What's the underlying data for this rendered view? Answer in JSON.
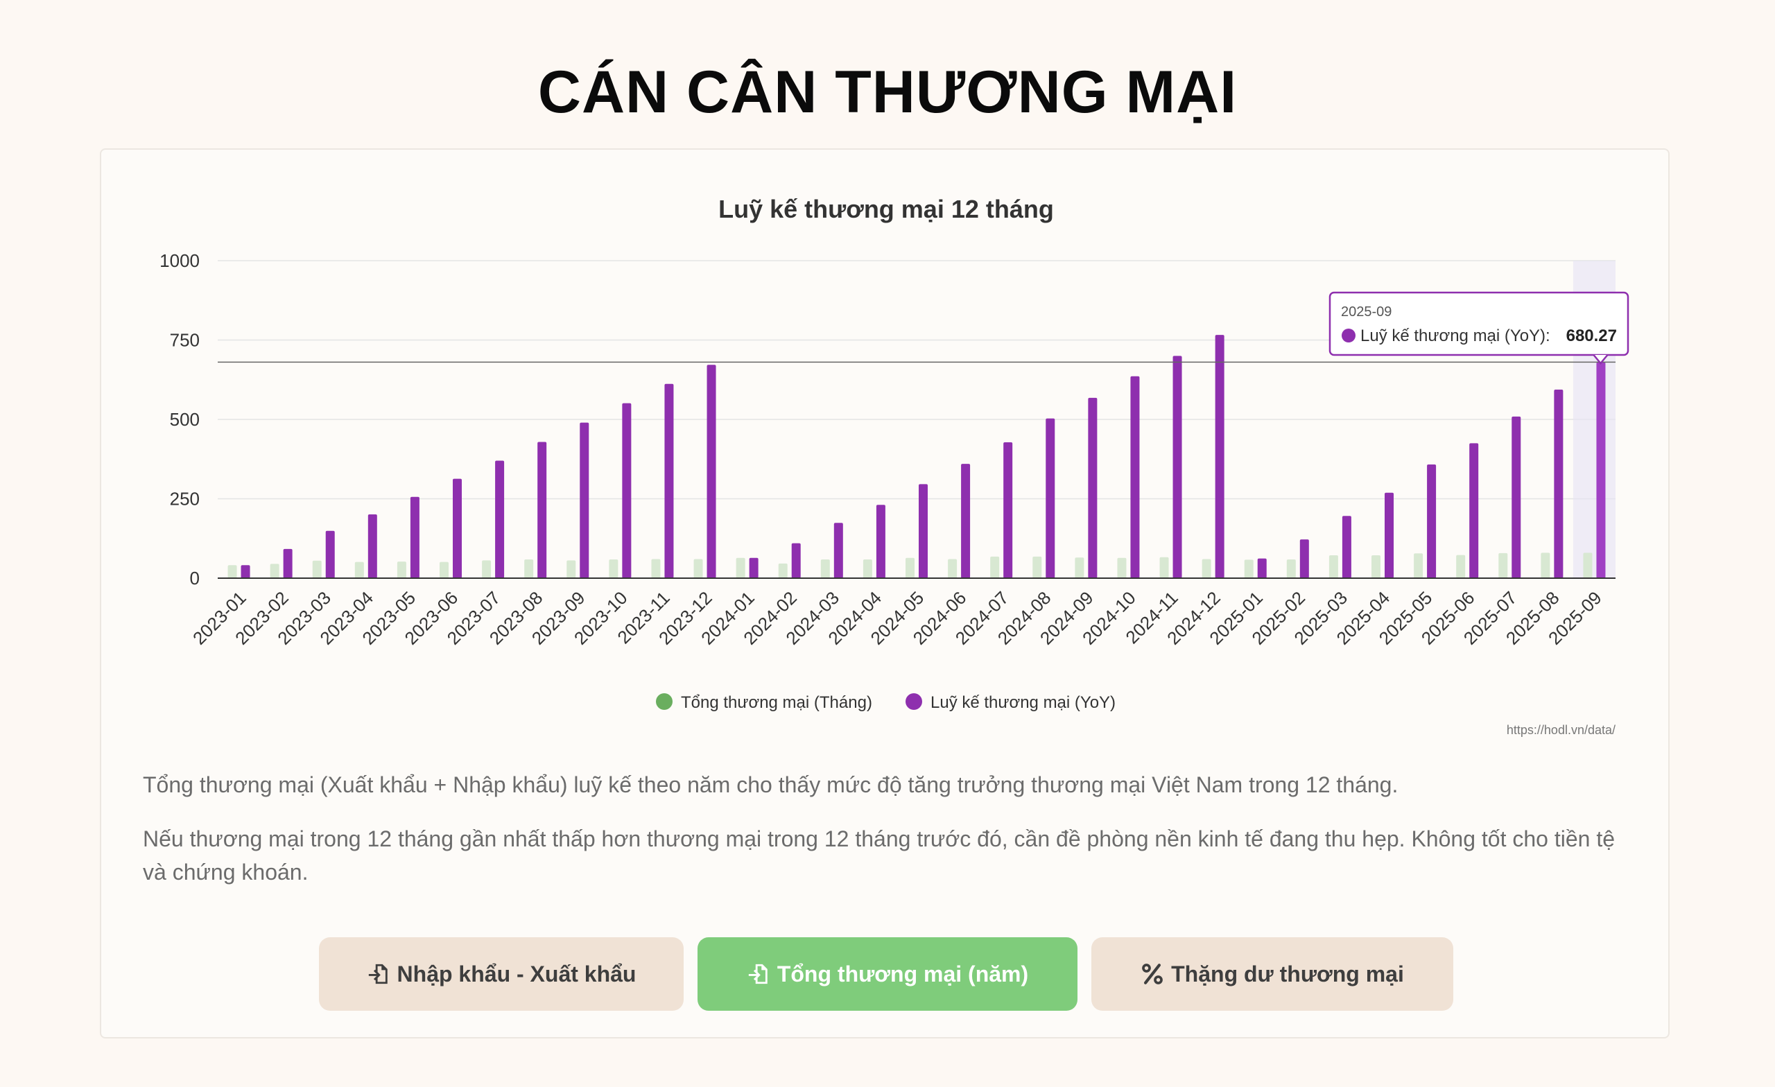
{
  "page": {
    "title": "CÁN CÂN THƯƠNG MẠI"
  },
  "chart_data": {
    "type": "bar",
    "title": "Luỹ kế thương mại 12 tháng",
    "xlabel": "",
    "ylabel": "",
    "ylim": [
      0,
      1000
    ],
    "yticks": [
      "0",
      "250",
      "500",
      "750",
      "1000"
    ],
    "categories": [
      "2023-01",
      "2023-02",
      "2023-03",
      "2023-04",
      "2023-05",
      "2023-06",
      "2023-07",
      "2023-08",
      "2023-09",
      "2023-10",
      "2023-11",
      "2023-12",
      "2024-01",
      "2024-02",
      "2024-03",
      "2024-04",
      "2024-05",
      "2024-06",
      "2024-07",
      "2024-08",
      "2024-09",
      "2024-10",
      "2024-11",
      "2024-12",
      "2025-01",
      "2025-02",
      "2025-03",
      "2025-04",
      "2025-05",
      "2025-06",
      "2025-07",
      "2025-08",
      "2025-09"
    ],
    "series": [
      {
        "name": "Tổng thương mại (Tháng)",
        "color": "#5fad56",
        "values": [
          41,
          45,
          55,
          51,
          52,
          51,
          56,
          59,
          56,
          59,
          60,
          60,
          64,
          46,
          59,
          59,
          64,
          60,
          68,
          68,
          65,
          64,
          66,
          60,
          58,
          59,
          72,
          72,
          78,
          73,
          79,
          80,
          80
        ]
      },
      {
        "name": "Luỹ kế thương mại (YoY)",
        "color": "#8e2fae",
        "values": [
          41,
          92,
          149,
          201,
          256,
          313,
          370,
          429,
          490,
          551,
          612,
          672,
          64,
          110,
          174,
          231,
          296,
          360,
          428,
          503,
          568,
          636,
          700,
          766,
          62,
          122,
          196,
          269,
          358,
          425,
          509,
          594,
          680.27
        ]
      }
    ],
    "legend_position": "bottom",
    "grid": true,
    "highlight_index": 32,
    "tooltip": {
      "label": "2025-09",
      "series": "Luỹ kế thương mại (YoY):",
      "value": "680.27"
    },
    "crosshair_value": 680.27,
    "source": "https://hodl.vn/data/"
  },
  "description": {
    "p1": "Tổng thương mại (Xuất khẩu + Nhập khẩu) luỹ kế theo năm cho thấy mức độ tăng trưởng thương mại Việt Nam trong 12 tháng.",
    "p2": "Nếu thương mại trong 12 tháng gần nhất thấp hơn thương mại trong 12 tháng trước đó, cần đề phòng nền kinh tế đang thu hẹp. Không tốt cho tiền tệ và chứng khoán."
  },
  "buttons": [
    {
      "label": "Nhập khẩu - Xuất khẩu",
      "icon": "file-import-icon",
      "active": false
    },
    {
      "label": "Tổng thương mại (năm)",
      "icon": "file-import-icon",
      "active": true
    },
    {
      "label": "Thặng dư thương mại",
      "icon": "percent-icon",
      "active": false
    }
  ]
}
